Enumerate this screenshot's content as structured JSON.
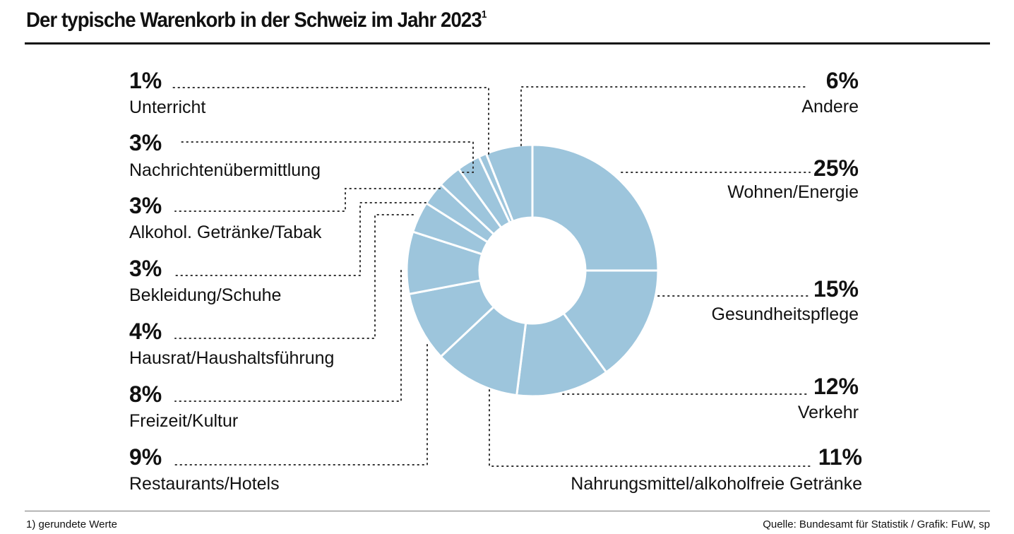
{
  "title": "Der typische Warenkorb in der Schweiz im Jahr 2023",
  "title_sup": "1",
  "footnote": "1) gerundete Werte",
  "source": "Quelle: Bundesamt für Statistik / Grafik: FuW, sp",
  "colors": {
    "slice": "#9dc5dc",
    "separator": "#ffffff",
    "text": "#111111"
  },
  "chart_data": {
    "type": "pie",
    "donut": true,
    "slices": [
      {
        "label": "Wohnen/Energie",
        "pct": "25%",
        "value": 25
      },
      {
        "label": "Gesundheitspflege",
        "pct": "15%",
        "value": 15
      },
      {
        "label": "Verkehr",
        "pct": "12%",
        "value": 12
      },
      {
        "label": "Nahrungsmittel/alkoholfreie Getränke",
        "pct": "11%",
        "value": 11
      },
      {
        "label": "Restaurants/Hotels",
        "pct": "9%",
        "value": 9
      },
      {
        "label": "Freizeit/Kultur",
        "pct": "8%",
        "value": 8
      },
      {
        "label": "Hausrat/Haushaltsführung",
        "pct": "4%",
        "value": 4
      },
      {
        "label": "Bekleidung/Schuhe",
        "pct": "3%",
        "value": 3
      },
      {
        "label": "Alkohol. Getränke/Tabak",
        "pct": "3%",
        "value": 3
      },
      {
        "label": "Nachrichtenübermittlung",
        "pct": "3%",
        "value": 3
      },
      {
        "label": "Unterricht",
        "pct": "1%",
        "value": 1
      },
      {
        "label": "Andere",
        "pct": "6%",
        "value": 6
      }
    ]
  }
}
